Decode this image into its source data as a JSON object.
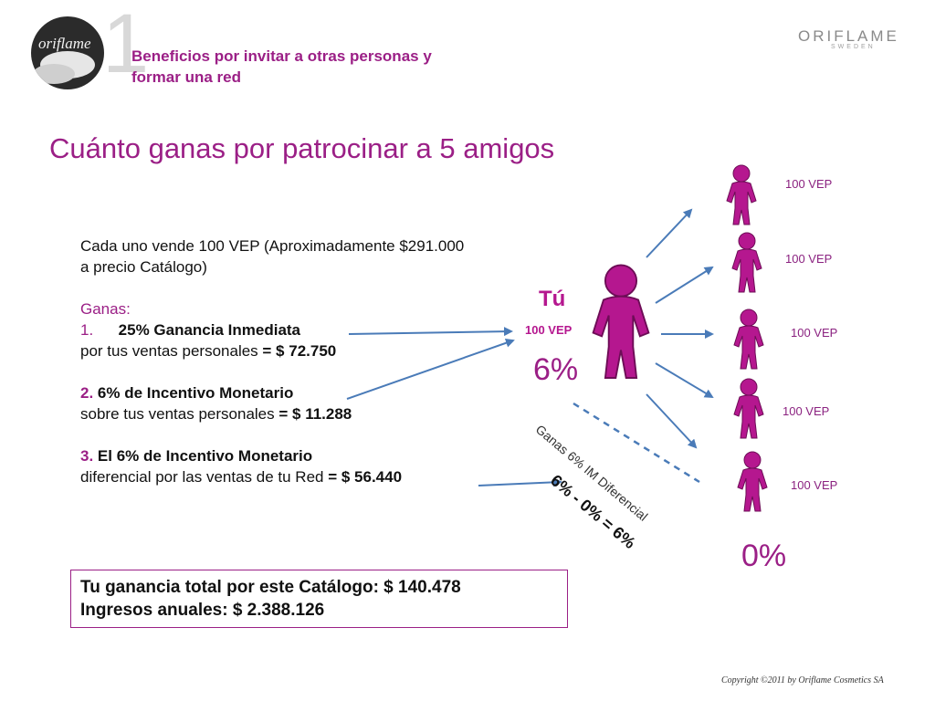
{
  "header": {
    "slide_number": "1",
    "logo_text": "oriflame",
    "section_title_line1": "Beneficios por invitar a otras personas y",
    "section_title_line2": "formar una red",
    "brand": "ORIFLAME",
    "brand_sub": "SWEDEN"
  },
  "main_title": "Cuánto ganas por patrocinar a 5 amigos",
  "body": {
    "intro_line1": "Cada uno vende 100 VEP (Aproximadamente $291.000",
    "intro_line2": "a precio Catálogo)",
    "ganas": "Ganas:",
    "item1_number": "1.",
    "item1_title": "25% Ganancia Inmediata",
    "item1_text": "por tus ventas personales ",
    "item1_value": "= $ 72.750",
    "item2_number": "2.",
    "item2_title": "6% de Incentivo Monetario",
    "item2_text": "sobre tus ventas personales  ",
    "item2_value": "= $ 11.288",
    "item3_number": "3.",
    "item3_title": "El 6% de Incentivo Monetario",
    "item3_text": " diferencial por las ventas de tu Red ",
    "item3_value": "= $ 56.440"
  },
  "diagram": {
    "you_label": "Tú",
    "you_vep": "100 VEP",
    "you_percent": "6%",
    "friends_vep": [
      "100 VEP",
      "100 VEP",
      "100 VEP",
      "100 VEP",
      "100 VEP"
    ],
    "friends_percent": "0%",
    "diff_label": "Ganas 6% IM Diferencial",
    "diff_formula": "6% - 0% = 6%"
  },
  "totals": {
    "line1": "Tu ganancia total por este Catálogo: $ 140.478",
    "line2": "Ingresos anuales: $ 2.388.126"
  },
  "footer": {
    "copyright": "Copyright ©2011 by Oriflame Cosmetics SA"
  },
  "colors": {
    "purple": "#9b1f86",
    "magenta": "#b5178f",
    "arrow": "#4a7bb8"
  }
}
